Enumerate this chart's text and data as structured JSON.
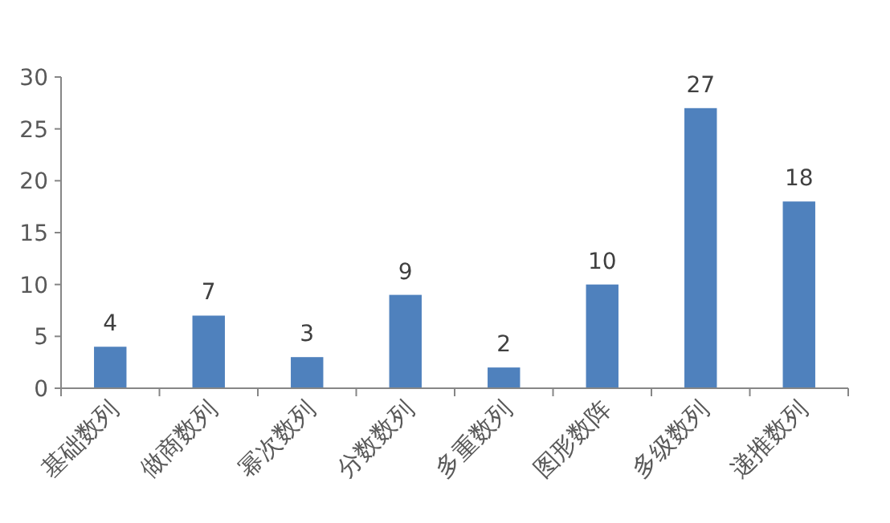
{
  "chart_data": {
    "type": "bar",
    "categories": [
      "基础数列",
      "做商数列",
      "幂次数列",
      "分数数列",
      "多重数列",
      "图形数阵",
      "多级数列",
      "递推数列"
    ],
    "values": [
      4,
      7,
      3,
      9,
      2,
      10,
      27,
      18
    ],
    "color": "#4f81bd",
    "ylim": [
      0,
      30
    ],
    "yticks": [
      0,
      5,
      10,
      15,
      20,
      25,
      30
    ],
    "data_labels": true
  }
}
